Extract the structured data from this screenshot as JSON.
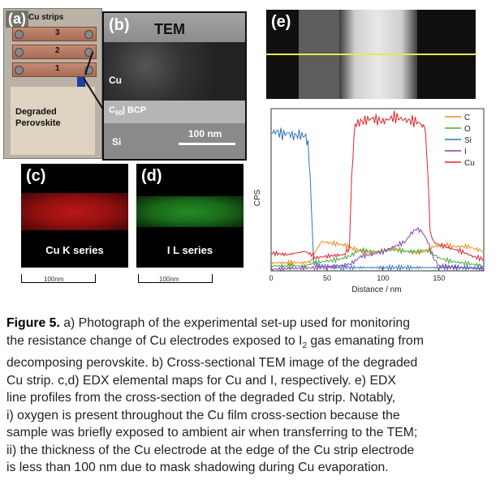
{
  "panel_a": {
    "label": "(a)",
    "strips_title": "Cu strips",
    "strip_numbers": [
      "3",
      "2",
      "1"
    ],
    "degraded_line1": "Degraded",
    "degraded_line2": "Perovskite"
  },
  "panel_b": {
    "label": "(b)",
    "title": "TEM",
    "cu_label": "Cu",
    "c60_label_main": "C",
    "c60_label_sub": "60",
    "c60_label_rest": "| BCP",
    "si_label": "Si",
    "scale_label": "100 nm"
  },
  "panel_c": {
    "label": "(c)",
    "caption": "Cu K series",
    "scale_text": "100nm"
  },
  "panel_d": {
    "label": "(d)",
    "caption": "I L series",
    "scale_text": "100nm"
  },
  "panel_e": {
    "label": "(e)"
  },
  "colors": {
    "C": "#f08a1a",
    "O": "#3fae3f",
    "Si": "#2f74c0",
    "I": "#8b3fb0",
    "Cu": "#e0242a",
    "scan_line": "#e8e84a"
  },
  "chart_data": {
    "type": "line",
    "title": "",
    "xlabel": "Distance / nm",
    "ylabel": "CPS",
    "xlim": [
      0,
      190
    ],
    "ylim": [
      0,
      100
    ],
    "xticks": [
      0,
      50,
      100,
      150
    ],
    "legend_position": "top-right",
    "series": [
      {
        "name": "C",
        "color": "#f08a1a",
        "x": [
          0,
          30,
          36,
          38,
          45,
          55,
          65,
          72,
          80,
          90,
          100,
          110,
          120,
          130,
          140,
          145,
          155,
          165,
          175,
          185,
          190
        ],
        "y": [
          5,
          5,
          6,
          10,
          18,
          17,
          16,
          14,
          12,
          11,
          12,
          14,
          12,
          11,
          12,
          15,
          16,
          15,
          15,
          13,
          12
        ]
      },
      {
        "name": "O",
        "color": "#3fae3f",
        "x": [
          0,
          30,
          40,
          50,
          60,
          70,
          75,
          80,
          90,
          100,
          110,
          120,
          130,
          140,
          145,
          150,
          160,
          170,
          180,
          190
        ],
        "y": [
          3,
          3,
          5,
          6,
          7,
          9,
          11,
          13,
          12,
          12,
          13,
          12,
          12,
          13,
          10,
          8,
          6,
          5,
          4,
          3
        ]
      },
      {
        "name": "Si",
        "color": "#2f74c0",
        "x": [
          0,
          5,
          10,
          15,
          20,
          25,
          30,
          33,
          36,
          38,
          42,
          60,
          80,
          100,
          120,
          140,
          160,
          180,
          190
        ],
        "y": [
          85,
          86,
          84,
          85,
          83,
          84,
          83,
          80,
          40,
          6,
          3,
          2,
          2,
          2,
          2,
          2,
          2,
          2,
          2
        ]
      },
      {
        "name": "I",
        "color": "#8b3fb0",
        "x": [
          0,
          40,
          60,
          70,
          75,
          80,
          90,
          100,
          110,
          120,
          125,
          130,
          135,
          140,
          145,
          150,
          170,
          190
        ],
        "y": [
          1,
          2,
          3,
          4,
          6,
          9,
          10,
          12,
          15,
          18,
          23,
          26,
          24,
          18,
          8,
          3,
          2,
          1
        ]
      },
      {
        "name": "Cu",
        "color": "#e0242a",
        "x": [
          0,
          15,
          30,
          36,
          40,
          50,
          65,
          70,
          72,
          75,
          80,
          90,
          100,
          110,
          120,
          130,
          135,
          138,
          140,
          142,
          145,
          150,
          160,
          170,
          180,
          190
        ],
        "y": [
          11,
          10,
          12,
          10,
          8,
          9,
          10,
          14,
          60,
          90,
          92,
          94,
          92,
          95,
          93,
          92,
          90,
          86,
          60,
          25,
          18,
          16,
          14,
          12,
          9,
          7
        ]
      }
    ]
  },
  "caption": {
    "figure_label": "Figure 5.",
    "line1": " a) Photograph of the experimental set-up used for monitoring",
    "line2": "the resistance change of Cu electrodes exposed to I",
    "line2_sub": "2",
    "line2_rest": " gas emanating from",
    "line3": "decomposing perovskite. b) Cross-sectional TEM image of the degraded",
    "line4": "Cu strip. c,d) EDX elemental maps for Cu and I, respectively. e) EDX",
    "line5": "line profiles from the cross-section of the degraded Cu strip. Notably,",
    "line6": "i) oxygen is present throughout the Cu film cross-section because the",
    "line7": "sample was briefly exposed to ambient air when transferring to the TEM;",
    "line8": "ii) the thickness of the Cu electrode at the edge of the Cu strip electrode",
    "line9": "is less than 100 nm due to mask shadowing during Cu evaporation."
  }
}
